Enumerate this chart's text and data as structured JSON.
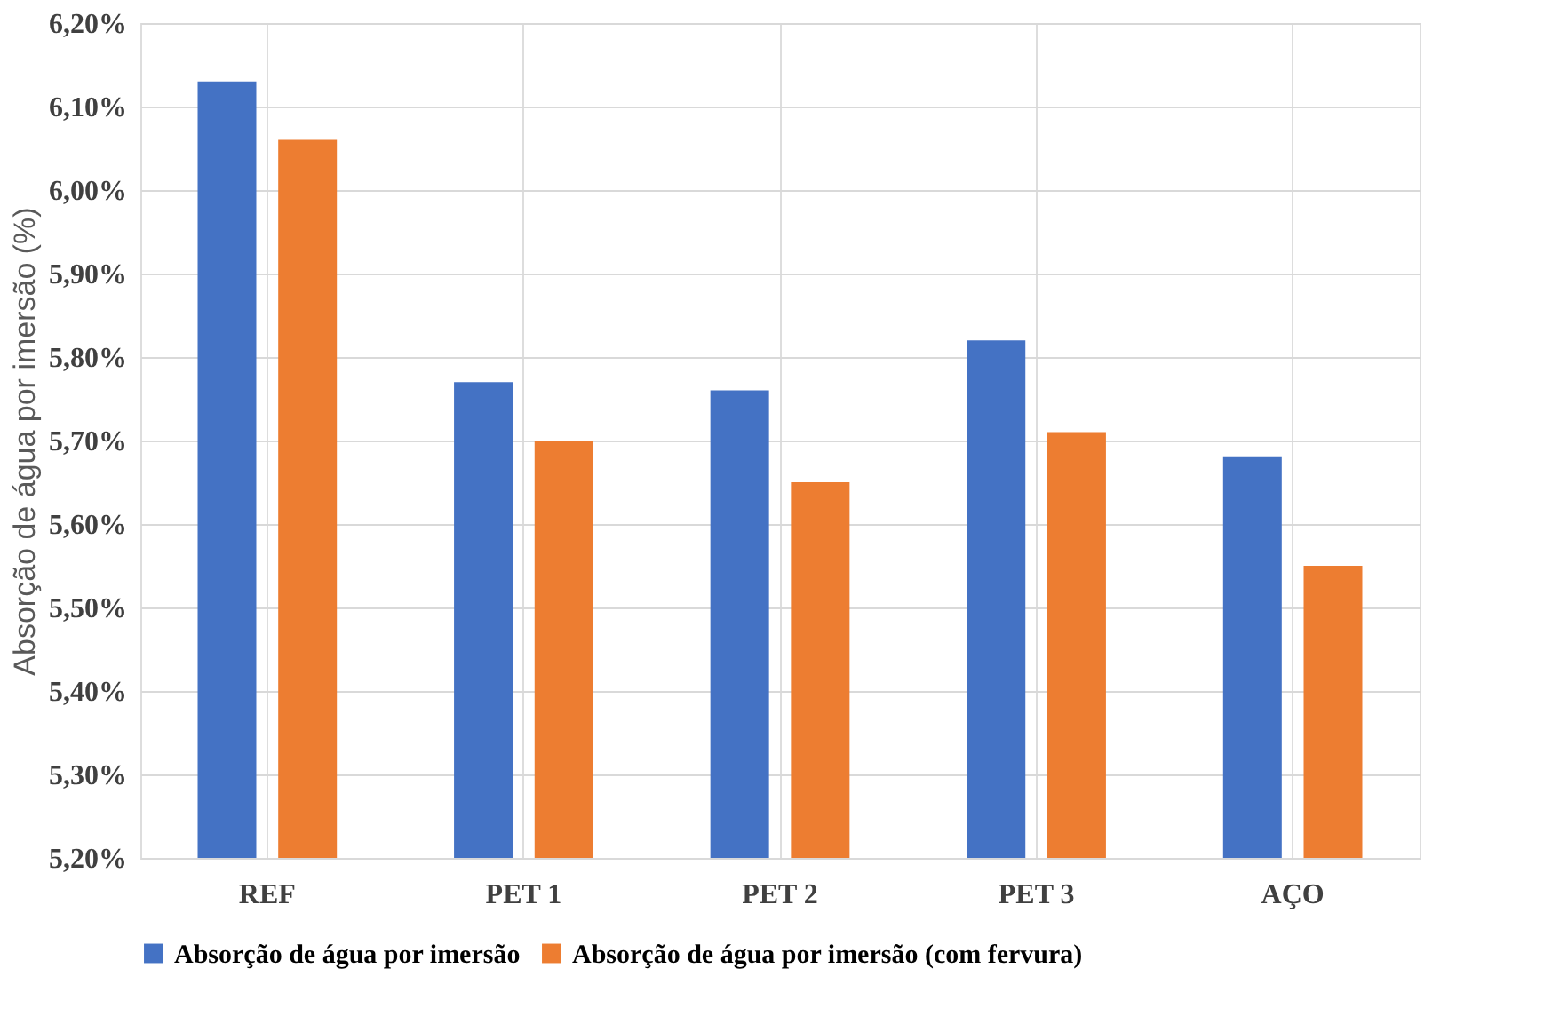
{
  "chart_data": {
    "type": "bar",
    "ylabel": "Absorção de água por imersão (%)",
    "categories": [
      "REF",
      "PET 1",
      "PET 2",
      "PET 3",
      "AÇO"
    ],
    "series": [
      {
        "name": "Absorção de água por imersão",
        "color": "#4472c4",
        "values": [
          6.13,
          5.77,
          5.76,
          5.82,
          5.68
        ]
      },
      {
        "name": "Absorção de água por imersão (com fervura)",
        "color": "#ed7d31",
        "values": [
          6.06,
          5.7,
          5.65,
          5.71,
          5.55
        ]
      }
    ],
    "ylim": [
      5.2,
      6.2
    ],
    "yticks": [
      {
        "value": 5.2,
        "label": "5,20%"
      },
      {
        "value": 5.3,
        "label": "5,30%"
      },
      {
        "value": 5.4,
        "label": "5,40%"
      },
      {
        "value": 5.5,
        "label": "5,50%"
      },
      {
        "value": 5.6,
        "label": "5,60%"
      },
      {
        "value": 5.7,
        "label": "5,70%"
      },
      {
        "value": 5.8,
        "label": "5,80%"
      },
      {
        "value": 5.9,
        "label": "5,90%"
      },
      {
        "value": 6.0,
        "label": "6,00%"
      },
      {
        "value": 6.1,
        "label": "6,10%"
      },
      {
        "value": 6.2,
        "label": "6,20%"
      }
    ],
    "grid": true,
    "legend": "bottom"
  }
}
